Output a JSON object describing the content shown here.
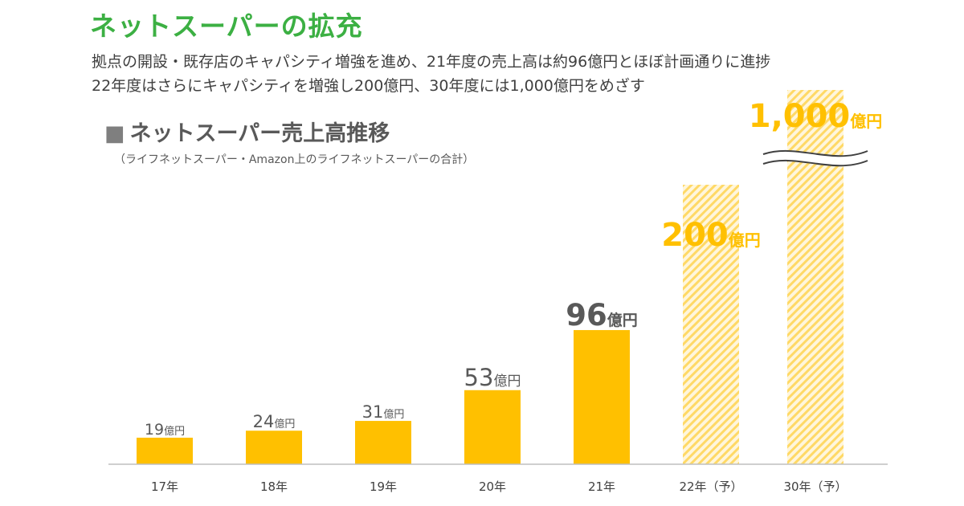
{
  "header": {
    "title": "ネットスーパーの拡充",
    "subtitle_line1": "拠点の開設・既存店のキャパシティ増強を進め、21年度の売上高は約96億円とほぼ計画通りに進捗",
    "subtitle_line2": "22年度はさらにキャパシティを増強し200億円、30年度には1,000億円をめざす"
  },
  "chart_data": {
    "type": "bar",
    "title": "■ネットスーパー売上高推移",
    "title_marker": "■",
    "title_text": "ネットスーパー売上高推移",
    "note": "（ライフネットスーパー・Amazon上のライフネットスーパーの合計）",
    "unit": "億円",
    "categories": [
      "17年",
      "18年",
      "19年",
      "20年",
      "21年",
      "22年（予）",
      "30年（予）"
    ],
    "values": [
      19,
      24,
      31,
      53,
      96,
      200,
      1000
    ],
    "value_labels": [
      "19",
      "24",
      "31",
      "53",
      "96",
      "200",
      "1,000"
    ],
    "forecast": [
      false,
      false,
      false,
      false,
      false,
      true,
      true
    ],
    "axis_break": {
      "category": "30年（予）",
      "shown": true
    },
    "ylim": [
      0,
      200
    ],
    "grid": false,
    "legend": "none",
    "xlabel": "",
    "ylabel": "",
    "colors": {
      "actual": "#ffc000",
      "forecast_stripe": "#ffd966",
      "forecast_bg": "#fff6dc",
      "forecast_label": "#ffc000",
      "label_dark": "#595959",
      "axis": "#bfbfbf"
    }
  }
}
